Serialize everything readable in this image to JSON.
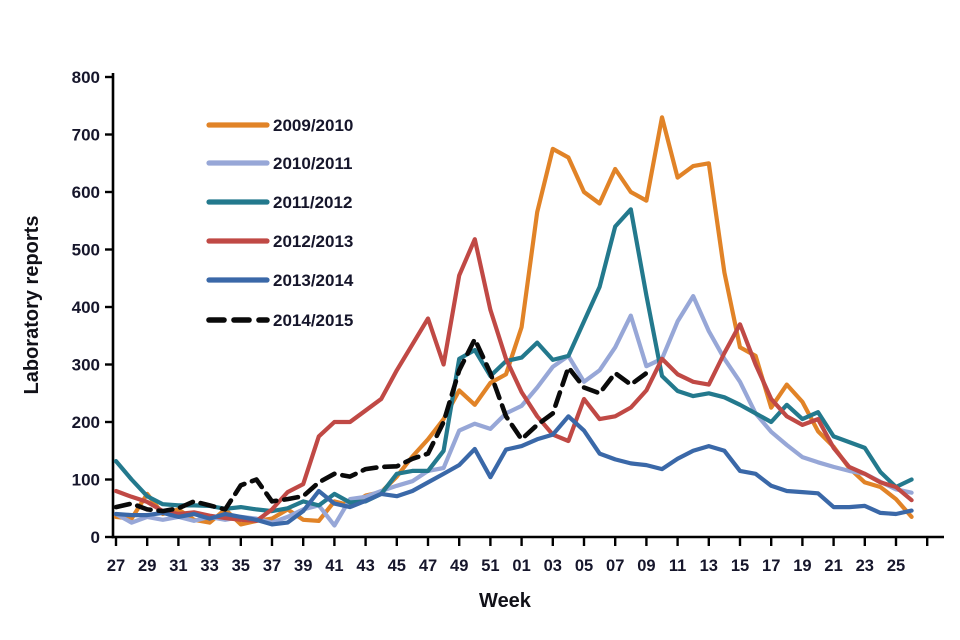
{
  "figure": {
    "y_axis_title": "Laboratory reports",
    "x_axis_title": "Week"
  },
  "chart_data": {
    "type": "line",
    "title": "",
    "xlabel": "Week",
    "ylabel": "Laboratory reports",
    "ylim": [
      0,
      800
    ],
    "y_ticks": [
      0,
      100,
      200,
      300,
      400,
      500,
      600,
      700,
      800
    ],
    "grid": false,
    "legend_position": "upper-left-inside",
    "x_week_labels": [
      "27",
      "28",
      "29",
      "30",
      "31",
      "32",
      "33",
      "34",
      "35",
      "36",
      "37",
      "38",
      "39",
      "40",
      "41",
      "42",
      "43",
      "44",
      "45",
      "46",
      "47",
      "48",
      "49",
      "50",
      "51",
      "52",
      "01",
      "02",
      "03",
      "04",
      "05",
      "06",
      "07",
      "08",
      "09",
      "10",
      "11",
      "12",
      "13",
      "14",
      "15",
      "16",
      "17",
      "18",
      "19",
      "20",
      "21",
      "22",
      "23",
      "24",
      "25",
      "26"
    ],
    "x_tick_labels": [
      "27",
      "29",
      "31",
      "33",
      "35",
      "37",
      "39",
      "41",
      "43",
      "45",
      "47",
      "49",
      "51",
      "01",
      "03",
      "05",
      "07",
      "09",
      "11",
      "13",
      "15",
      "17",
      "19",
      "21",
      "23",
      "25"
    ],
    "series": [
      {
        "name": "2009/2010",
        "color": "#E18327",
        "dashed": false,
        "values": [
          35,
          32,
          75,
          40,
          48,
          30,
          25,
          48,
          22,
          28,
          32,
          48,
          30,
          28,
          62,
          55,
          72,
          78,
          105,
          140,
          170,
          205,
          255,
          230,
          268,
          283,
          365,
          565,
          675,
          660,
          600,
          580,
          640,
          600,
          585,
          730,
          625,
          645,
          650,
          460,
          330,
          315,
          225,
          265,
          235,
          184,
          157,
          120,
          95,
          87,
          66,
          35
        ]
      },
      {
        "name": "2010/2011",
        "color": "#97A7D7",
        "dashed": false,
        "values": [
          40,
          25,
          35,
          30,
          35,
          28,
          35,
          30,
          35,
          32,
          25,
          35,
          48,
          55,
          20,
          66,
          70,
          80,
          89,
          97,
          115,
          120,
          185,
          197,
          188,
          215,
          228,
          260,
          296,
          315,
          270,
          290,
          330,
          385,
          297,
          310,
          375,
          419,
          358,
          310,
          270,
          215,
          183,
          160,
          139,
          130,
          122,
          115,
          110,
          96,
          83,
          77
        ]
      },
      {
        "name": "2011/2012",
        "color": "#23798D",
        "dashed": false,
        "values": [
          132,
          100,
          71,
          57,
          55,
          55,
          54,
          49,
          52,
          48,
          45,
          50,
          62,
          55,
          75,
          60,
          62,
          75,
          110,
          115,
          115,
          150,
          310,
          325,
          280,
          306,
          312,
          338,
          308,
          315,
          375,
          435,
          540,
          570,
          420,
          280,
          254,
          245,
          250,
          243,
          230,
          215,
          200,
          230,
          205,
          217,
          175,
          165,
          155,
          113,
          87,
          100
        ]
      },
      {
        "name": "2012/2013",
        "color": "#C04945",
        "dashed": false,
        "values": [
          80,
          70,
          61,
          45,
          40,
          43,
          37,
          33,
          30,
          28,
          48,
          78,
          92,
          175,
          200,
          200,
          220,
          240,
          290,
          335,
          380,
          300,
          455,
          518,
          395,
          310,
          252,
          210,
          178,
          167,
          240,
          205,
          210,
          225,
          255,
          310,
          283,
          270,
          265,
          320,
          370,
          300,
          240,
          210,
          195,
          205,
          155,
          122,
          110,
          95,
          87,
          64
        ]
      },
      {
        "name": "2013/2014",
        "color": "#3A68A8",
        "dashed": false,
        "values": [
          40,
          38,
          38,
          42,
          35,
          40,
          32,
          40,
          35,
          30,
          22,
          25,
          45,
          80,
          58,
          52,
          63,
          75,
          71,
          80,
          95,
          110,
          125,
          153,
          104,
          152,
          158,
          170,
          178,
          210,
          185,
          145,
          135,
          128,
          125,
          118,
          136,
          150,
          158,
          150,
          115,
          110,
          89,
          80,
          78,
          76,
          52,
          52,
          54,
          42,
          40,
          46
        ]
      },
      {
        "name": "2014/2015",
        "color": "#0a0a0a",
        "dashed": true,
        "values": [
          52,
          58,
          48,
          45,
          50,
          62,
          55,
          48,
          90,
          100,
          62,
          66,
          71,
          95,
          110,
          105,
          118,
          122,
          123,
          136,
          145,
          200,
          290,
          344,
          285,
          210,
          170,
          195,
          215,
          295,
          260,
          250,
          285,
          265,
          285,
          null,
          null,
          null,
          null,
          null,
          null,
          null,
          null,
          null,
          null,
          null,
          null,
          null,
          null,
          null,
          null,
          null
        ]
      }
    ]
  }
}
